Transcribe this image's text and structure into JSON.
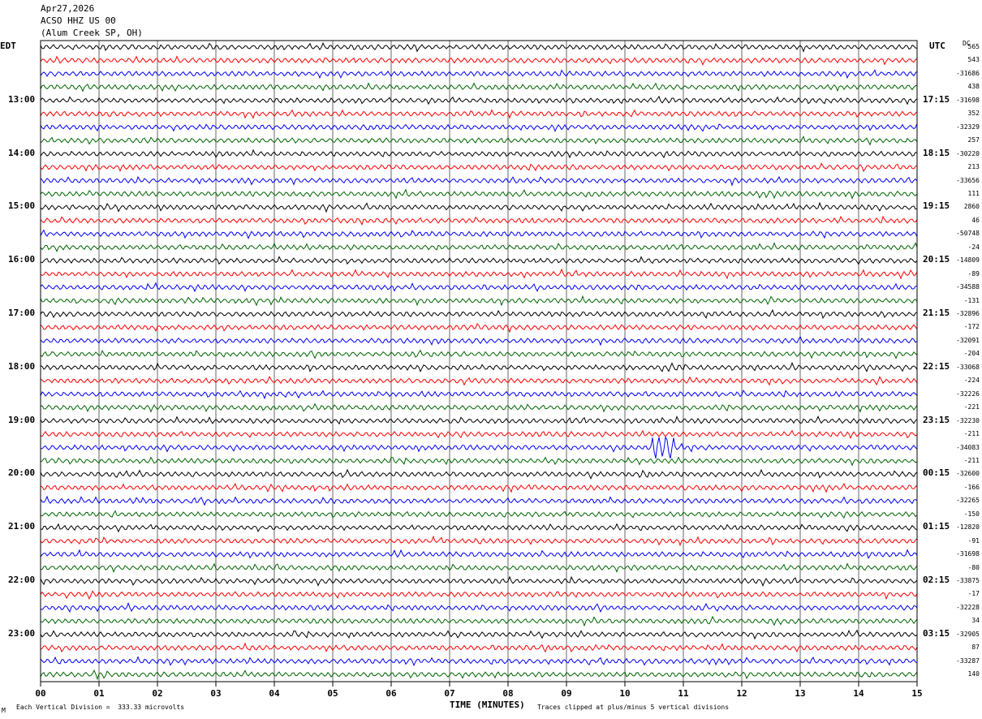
{
  "header": {
    "date": "Apr27,2026",
    "station": "ACSO HHZ US 00",
    "location": "(Alum Creek SP, OH)"
  },
  "left_tz": "EDT",
  "right_tz": "UTC",
  "dc_label": "DC",
  "footer": {
    "scale_note": "Each Vertical Division =  333.33 microvolts",
    "clip_note": "Traces clipped at plus/minus 5 vertical divisions",
    "corner_mark": "M"
  },
  "chart_data": {
    "type": "line",
    "xlabel": "TIME (MINUTES)",
    "x_ticks": [
      "00",
      "01",
      "02",
      "03",
      "04",
      "05",
      "06",
      "07",
      "08",
      "09",
      "10",
      "11",
      "12",
      "13",
      "14",
      "15"
    ],
    "xlim": [
      0,
      15
    ],
    "traces_per_hour": 4,
    "color_cycle": [
      "#000000",
      "#ff0000",
      "#0000ff",
      "#006600"
    ],
    "left_hour_labels": [
      "13:00",
      "14:00",
      "15:00",
      "16:00",
      "17:00",
      "18:00",
      "19:00",
      "20:00",
      "21:00",
      "22:00",
      "23:00"
    ],
    "right_hour_labels": [
      "17:15",
      "18:15",
      "19:15",
      "20:15",
      "21:15",
      "22:15",
      "23:15",
      "00:15",
      "01:15",
      "02:15",
      "03:15"
    ],
    "dc_offsets": [
      "565",
      "543",
      "-31686",
      "438",
      "-31698",
      "352",
      "-32329",
      "257",
      "-30220",
      "213",
      "-33656",
      "111",
      "2860",
      "46",
      "-50748",
      "-24",
      "-14809",
      "-89",
      "-34588",
      "-131",
      "-32896",
      "-172",
      "-32091",
      "-204",
      "-33068",
      "-224",
      "-32226",
      "-221",
      "-32230",
      "-211",
      "-34083",
      "-211",
      "-32600",
      "-166",
      "-32265",
      "-150",
      "-12820",
      "-91",
      "-31698",
      "-80",
      "-33875",
      "-17",
      "-32228",
      "34",
      "-32905",
      "87",
      "-33287",
      "140"
    ],
    "event": {
      "trace_index": 30,
      "minute_start": 10.45,
      "minute_end": 10.85
    }
  }
}
